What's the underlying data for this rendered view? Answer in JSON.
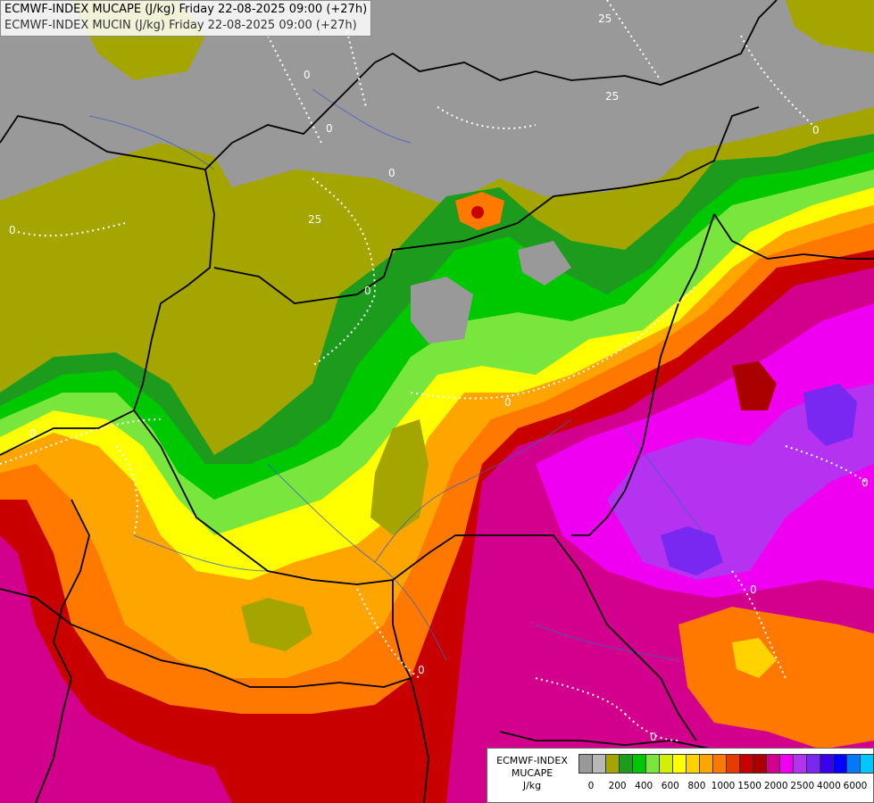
{
  "title": {
    "line1": "ECMWF-INDEX MUCAPE (J/kg) Friday 22-08-2025 09:00 (+27h)",
    "line2": "ECMWF-INDEX MUCIN (J/kg) Friday 22-08-2025 09:00 (+27h)"
  },
  "legend": {
    "line1": "ECMWF-INDEX",
    "line2": "MUCAPE",
    "line3": "J/kg",
    "swatches": [
      "#999999",
      "#b8b8b8",
      "#a5a500",
      "#1c9b1c",
      "#00c800",
      "#78e63c",
      "#d2f000",
      "#ffff00",
      "#ffd200",
      "#ffa500",
      "#ff7800",
      "#e63c00",
      "#c80000",
      "#aa0000",
      "#d2008c",
      "#f000f0",
      "#b432f0",
      "#7828f0",
      "#3c00f0",
      "#0000ff",
      "#0078ff",
      "#00c8ff",
      "#64f0ff",
      "#ffffff"
    ],
    "ticks": [
      "0",
      "200",
      "400",
      "600",
      "800",
      "1000",
      "1500",
      "2000",
      "2500",
      "4000",
      "6000"
    ]
  },
  "contour_labels": [
    "0",
    "0",
    "0",
    "0",
    "0",
    "0",
    "0",
    "0",
    "0",
    "0",
    "0",
    "0",
    "25",
    "25",
    "25"
  ],
  "colors": {
    "gray": "#999999",
    "olive": "#a5a500",
    "dark_green": "#1c9b1c",
    "green": "#00c800",
    "light_green": "#78e63c",
    "yellow": "#ffff00",
    "orange": "#ffa500",
    "dark_orange": "#ff7800",
    "red": "#c80000",
    "dark_red": "#aa0000",
    "magenta": "#d2008c",
    "pink": "#f000f0",
    "purple": "#7828f0",
    "blue": "#3c00f0",
    "border": "#000000",
    "river": "#4060c0",
    "cin_contour": "#ffffff"
  }
}
